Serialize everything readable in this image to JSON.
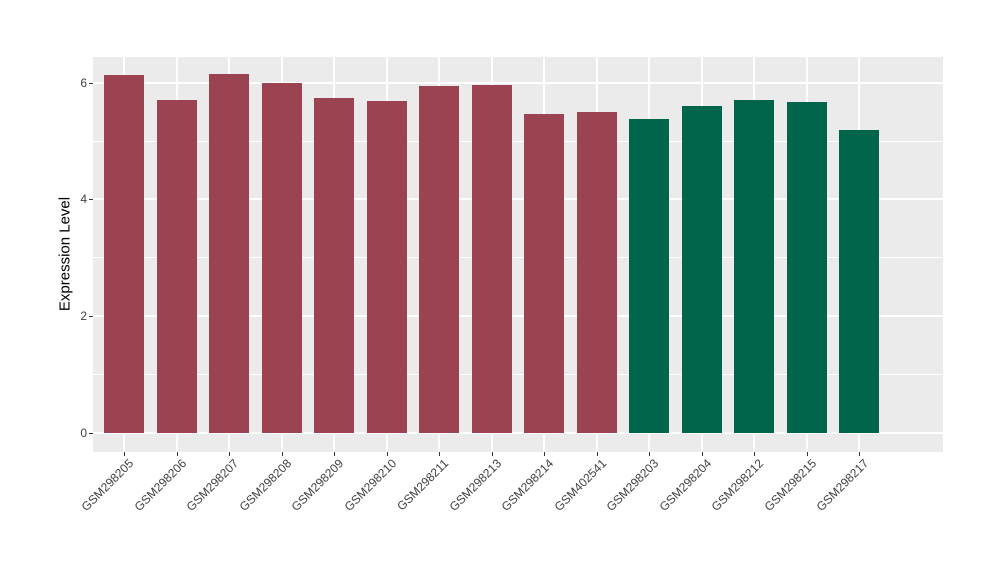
{
  "figure": {
    "background_color": "#FFFFFF",
    "panel_background_color": "#EBEBEB",
    "gridline_color": "#FFFFFF",
    "axis_text_color": "#404040",
    "axis_tick_color": "#333333",
    "axis_title_color": "#000000"
  },
  "chart_data": {
    "type": "bar",
    "title": "",
    "xlabel": "",
    "ylabel": "Expression Level",
    "ylim": [
      0,
      6.45
    ],
    "yticks_major": [
      0,
      2,
      4,
      6
    ],
    "yticks_minor": [
      1,
      3,
      5
    ],
    "grid": "on",
    "legend_position": "none",
    "categories": [
      "GSM298205",
      "GSM298206",
      "GSM298207",
      "GSM298208",
      "GSM298209",
      "GSM298210",
      "GSM298211",
      "GSM298213",
      "GSM298214",
      "GSM402541",
      "GSM298203",
      "GSM298204",
      "GSM298212",
      "GSM298215",
      "GSM298217"
    ],
    "series": [
      {
        "name": "Expression Level",
        "values": [
          6.13,
          5.71,
          6.14,
          6.0,
          5.74,
          5.68,
          5.95,
          5.96,
          5.47,
          5.5,
          5.37,
          5.6,
          5.71,
          5.66,
          5.19
        ],
        "bar_colors": [
          "#9B4350",
          "#9B4350",
          "#9B4350",
          "#9B4350",
          "#9B4350",
          "#9B4350",
          "#9B4350",
          "#9B4350",
          "#9B4350",
          "#9B4350",
          "#00654A",
          "#00654A",
          "#00654A",
          "#00654A",
          "#00654A"
        ]
      }
    ],
    "group_colors": {
      "group_a": "#9B4350",
      "group_b": "#00654A"
    }
  }
}
